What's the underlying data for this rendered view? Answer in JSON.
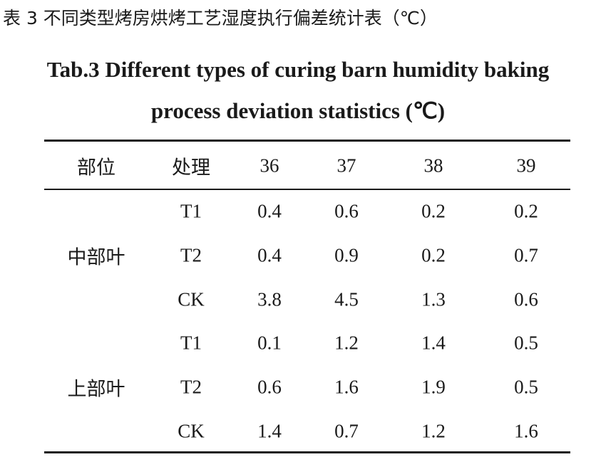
{
  "title_cn": "表 3 不同类型烤房烘烤工艺湿度执行偏差统计表（℃）",
  "title_en": [
    "Tab.3 Different types of curing barn humidity baking",
    "process deviation statistics (℃)"
  ],
  "table": {
    "header": [
      "部位",
      "处理",
      "36",
      "37",
      "38",
      "39"
    ],
    "groups": [
      {
        "label": "中部叶",
        "rows": [
          {
            "treatment": "T1",
            "values": [
              "0.4",
              "0.6",
              "0.2",
              "0.2"
            ]
          },
          {
            "treatment": "T2",
            "values": [
              "0.4",
              "0.9",
              "0.2",
              "0.7"
            ]
          },
          {
            "treatment": "CK",
            "values": [
              "3.8",
              "4.5",
              "1.3",
              "0.6"
            ]
          }
        ]
      },
      {
        "label": "上部叶",
        "rows": [
          {
            "treatment": "T1",
            "values": [
              "0.1",
              "1.2",
              "1.4",
              "0.5"
            ]
          },
          {
            "treatment": "T2",
            "values": [
              "0.6",
              "1.6",
              "1.9",
              "0.5"
            ]
          },
          {
            "treatment": "CK",
            "values": [
              "1.4",
              "0.7",
              "1.2",
              "1.6"
            ]
          }
        ]
      }
    ]
  }
}
